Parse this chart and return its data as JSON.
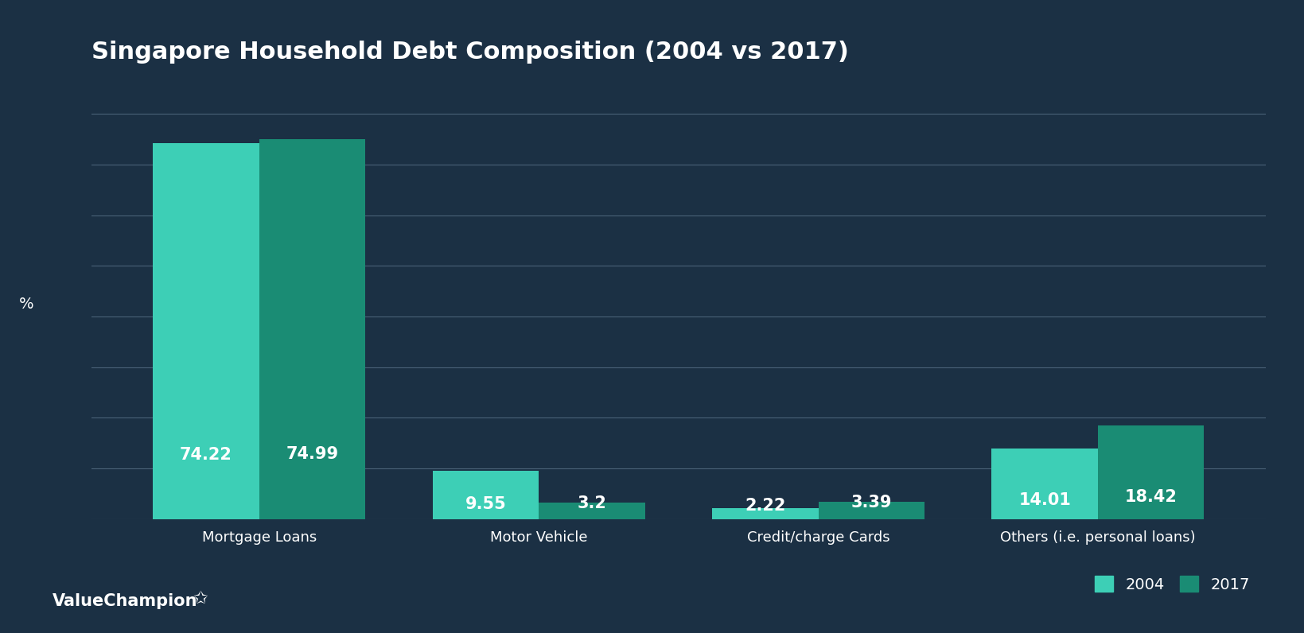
{
  "title": "Singapore Household Debt Composition (2004 vs 2017)",
  "categories": [
    "Mortgage Loans",
    "Motor Vehicle",
    "Credit/charge Cards",
    "Others (i.e. personal loans)"
  ],
  "values_2004": [
    74.22,
    9.55,
    2.22,
    14.01
  ],
  "values_2017": [
    74.99,
    3.2,
    3.39,
    18.42
  ],
  "color_2004": "#3dcfb6",
  "color_2017": "#1a8c74",
  "background_color": "#1b3044",
  "text_color": "#ffffff",
  "grid_color": "#4a6278",
  "ylabel": "%",
  "ylim": [
    0,
    85
  ],
  "legend_labels": [
    "2004",
    "2017"
  ],
  "bar_width": 0.38,
  "title_fontsize": 22,
  "tick_fontsize": 13,
  "value_fontsize": 15,
  "legend_fontsize": 14,
  "ylabel_fontsize": 14,
  "yticks": [
    0,
    10,
    20,
    30,
    40,
    50,
    60,
    70,
    80
  ]
}
